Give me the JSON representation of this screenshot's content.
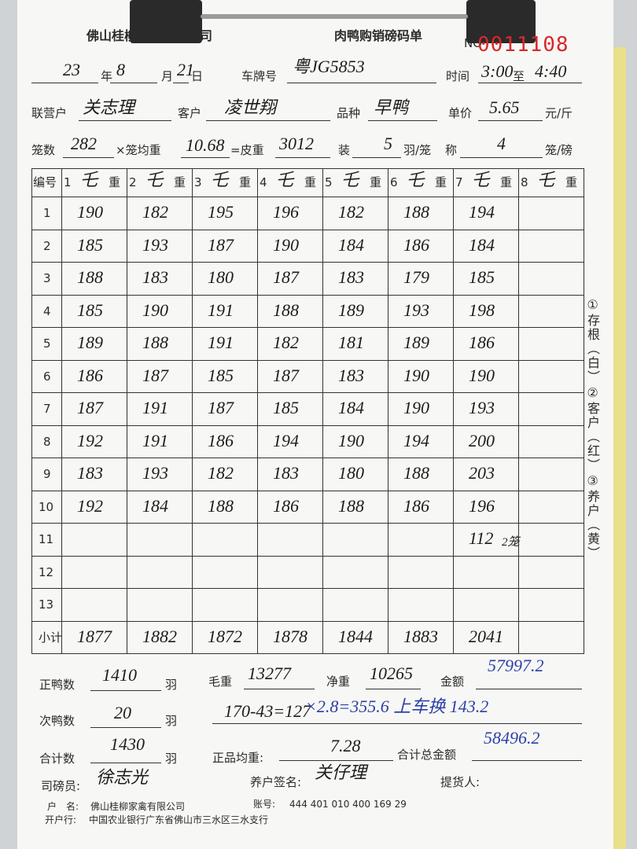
{
  "header": {
    "company": "佛山桂柳家禽有限公司",
    "title": "肉鸭购销磅码单",
    "no_label": "NO",
    "serial": "0011108"
  },
  "info": {
    "year": "23",
    "year_unit": "年",
    "month": "8",
    "month_unit": "月",
    "day": "21",
    "day_unit": "日",
    "plate_label": "车牌号",
    "plate": "粤JG5853",
    "time_label": "时间",
    "time_start": "3:00",
    "time_sep": "至",
    "time_end": "4:40",
    "partner_label": "联营户",
    "partner": "关志理",
    "customer_label": "客户",
    "customer": "凌世翔",
    "breed_label": "品种",
    "breed": "早鸭",
    "price_label": "单价",
    "price": "5.65",
    "price_unit": "元/斤",
    "cages_label": "笼数",
    "cages": "282",
    "cage_avg_label": "×笼均重",
    "cage_avg": "10.68",
    "tare_label": "=皮重",
    "tare": "3012",
    "per_cage_label": "装",
    "per_cage": "5",
    "per_cage_unit": "羽/笼",
    "weigh_label": "称",
    "weigh": "4",
    "weigh_unit": "笼/磅"
  },
  "table": {
    "no_label": "编号",
    "columns": [
      {
        "number": "1",
        "mark": "乇",
        "label": "重"
      },
      {
        "number": "2",
        "mark": "乇",
        "label": "重"
      },
      {
        "number": "3",
        "mark": "乇",
        "label": "重"
      },
      {
        "number": "4",
        "mark": "乇",
        "label": "重"
      },
      {
        "number": "5",
        "mark": "乇",
        "label": "重"
      },
      {
        "number": "6",
        "mark": "乇",
        "label": "重"
      },
      {
        "number": "7",
        "mark": "乇",
        "label": "重"
      },
      {
        "number": "8",
        "mark": "乇",
        "label": "重"
      }
    ],
    "rows": [
      {
        "label": "1",
        "cells": [
          190,
          182,
          195,
          196,
          182,
          188,
          194,
          null
        ]
      },
      {
        "label": "2",
        "cells": [
          185,
          193,
          187,
          190,
          184,
          186,
          184,
          null
        ]
      },
      {
        "label": "3",
        "cells": [
          188,
          183,
          180,
          187,
          183,
          179,
          185,
          null
        ]
      },
      {
        "label": "4",
        "cells": [
          185,
          190,
          191,
          188,
          189,
          193,
          198,
          null
        ]
      },
      {
        "label": "5",
        "cells": [
          189,
          188,
          191,
          182,
          181,
          189,
          186,
          null
        ]
      },
      {
        "label": "6",
        "cells": [
          186,
          187,
          185,
          187,
          183,
          190,
          190,
          null
        ]
      },
      {
        "label": "7",
        "cells": [
          187,
          191,
          187,
          185,
          184,
          190,
          193,
          null
        ]
      },
      {
        "label": "8",
        "cells": [
          192,
          191,
          186,
          194,
          190,
          194,
          200,
          null
        ]
      },
      {
        "label": "9",
        "cells": [
          183,
          193,
          182,
          183,
          180,
          188,
          203,
          null
        ]
      },
      {
        "label": "10",
        "cells": [
          192,
          184,
          188,
          186,
          188,
          186,
          196,
          null
        ]
      },
      {
        "label": "11",
        "cells": [
          null,
          null,
          null,
          null,
          null,
          null,
          112,
          null
        ]
      },
      {
        "label": "12",
        "cells": [
          null,
          null,
          null,
          null,
          null,
          null,
          null,
          null
        ]
      },
      {
        "label": "13",
        "cells": [
          null,
          null,
          null,
          null,
          null,
          null,
          null,
          null
        ]
      }
    ],
    "subtotal": {
      "label": "小计",
      "cells": [
        1877,
        1882,
        1872,
        1878,
        1844,
        1883,
        2041,
        null
      ]
    },
    "note": "2笼"
  },
  "side": [
    "①存根（白）",
    "②客户（红）",
    "③养户（黄）"
  ],
  "summary": {
    "good_label": "正鸭数",
    "good": "1410",
    "good_unit": "羽",
    "gross_label": "毛重",
    "gross": "13277",
    "net_label": "净重",
    "net": "10265",
    "amount_label": "金额",
    "amount": "57997.2",
    "sub_label": "次鸭数",
    "sub": "20",
    "sub_unit": "羽",
    "calc_a": "170-43=127",
    "calc_b": "×2.8=355.6 上车换 143.2",
    "total_label": "合计数",
    "total": "1430",
    "total_unit": "羽",
    "avg_label": "正品均重:",
    "avg": "7.28",
    "total_amount_label": "合计总金额",
    "total_amount": "58496.2",
    "weigher_label": "司磅员:",
    "weigher": "徐志光",
    "farmer_label": "养户签名:",
    "farmer": "关仔理",
    "pickup_label": "提货人:"
  },
  "footer": {
    "account_name_label": "户　名:",
    "account_name": "佛山桂柳家禽有限公司",
    "account_label": "账号:",
    "account": "444 401 010 400 169 29",
    "bank_label": "开户行:",
    "bank": "中国农业银行广东省佛山市三水区三水支行"
  }
}
